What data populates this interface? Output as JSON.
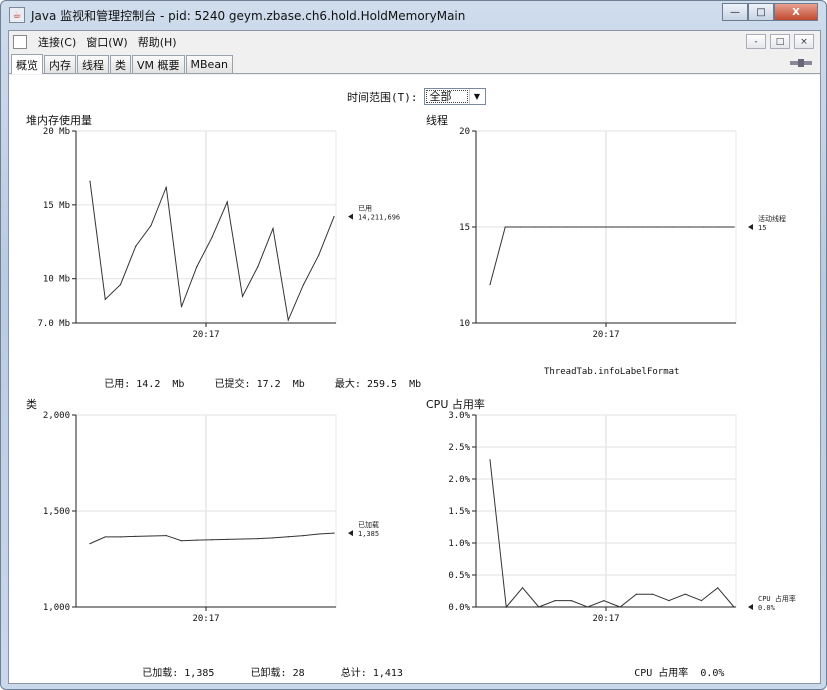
{
  "window": {
    "title": "Java 监视和管理控制台 - pid: 5240 geym.zbase.ch6.hold.HoldMemoryMain",
    "controls": [
      "minimize-icon",
      "maximize-icon",
      "close-icon"
    ]
  },
  "menubar": {
    "items": [
      "连接(C)",
      "窗口(W)",
      "帮助(H)"
    ],
    "mdi_controls": [
      "-",
      "□",
      "×"
    ]
  },
  "tabs": [
    "概览",
    "内存",
    "线程",
    "类",
    "VM 概要",
    "MBean"
  ],
  "time_range": {
    "label": "时间范围(T):",
    "value": "全部"
  },
  "panels": {
    "heap": {
      "title": "堆内存使用量",
      "stats": {
        "used_label": "已用:",
        "used_value": "14.2  Mb",
        "committed_label": "已提交:",
        "committed_value": "17.2  Mb",
        "max_label": "最大:",
        "max_value": "259.5  Mb"
      }
    },
    "threads": {
      "title": "线程",
      "footer": "ThreadTab.infoLabelFormat"
    },
    "classes": {
      "title": "类",
      "stats": {
        "loaded_label": "已加载:",
        "loaded_value": "1,385",
        "unloaded_label": "已卸载:",
        "unloaded_value": "28",
        "total_label": "总计:",
        "total_value": "1,413"
      }
    },
    "cpu": {
      "title": "CPU 占用率",
      "footer_label": "CPU 占用率",
      "footer_value": "0.0%"
    }
  },
  "chart_data": [
    {
      "id": "heap",
      "type": "line",
      "ylim": [
        7.0,
        20
      ],
      "yticks": [
        20,
        15,
        10,
        7.0
      ],
      "ytick_labels": [
        "20 Mb",
        "15 Mb",
        "10 Mb",
        "7.0 Mb"
      ],
      "xtick_labels": [
        "20:17"
      ],
      "series": [
        {
          "name": "已用",
          "current": "14,211,696",
          "values": [
            16.6,
            8.6,
            9.6,
            12.2,
            13.6,
            16.2,
            8.1,
            10.8,
            12.8,
            15.2,
            8.8,
            10.8,
            13.4,
            7.2,
            9.6,
            11.6,
            14.2
          ]
        }
      ],
      "grid": true
    },
    {
      "id": "threads",
      "type": "line",
      "ylim": [
        10,
        20
      ],
      "yticks": [
        20,
        15,
        10
      ],
      "ytick_labels": [
        "20",
        "15",
        "10"
      ],
      "xtick_labels": [
        "20:17"
      ],
      "series": [
        {
          "name": "活动线程",
          "current": "15",
          "values": [
            12,
            15,
            15,
            15,
            15,
            15,
            15,
            15,
            15,
            15,
            15,
            15,
            15,
            15,
            15,
            15,
            15
          ]
        }
      ],
      "grid": true
    },
    {
      "id": "classes",
      "type": "line",
      "ylim": [
        1000,
        2000
      ],
      "yticks": [
        2000,
        1500,
        1000
      ],
      "ytick_labels": [
        "2,000",
        "1,500",
        "1,000"
      ],
      "xtick_labels": [
        "20:17"
      ],
      "series": [
        {
          "name": "已加载",
          "current": "1,385",
          "values": [
            1330,
            1365,
            1365,
            1368,
            1370,
            1372,
            1345,
            1348,
            1350,
            1352,
            1354,
            1356,
            1360,
            1366,
            1372,
            1380,
            1385
          ]
        }
      ],
      "grid": true
    },
    {
      "id": "cpu",
      "type": "line",
      "ylim": [
        0,
        3.0
      ],
      "yticks": [
        3.0,
        2.5,
        2.0,
        1.5,
        1.0,
        0.5,
        0.0
      ],
      "ytick_labels": [
        "3.0%",
        "2.5%",
        "2.0%",
        "1.5%",
        "1.0%",
        "0.5%",
        "0.0%"
      ],
      "xtick_labels": [
        "20:17"
      ],
      "series": [
        {
          "name": "CPU 占用率",
          "current": "0.0%",
          "values": [
            2.3,
            0.0,
            0.3,
            0.0,
            0.1,
            0.1,
            0.0,
            0.1,
            0.0,
            0.2,
            0.2,
            0.1,
            0.2,
            0.1,
            0.3,
            0.0
          ]
        }
      ],
      "grid": true
    }
  ]
}
